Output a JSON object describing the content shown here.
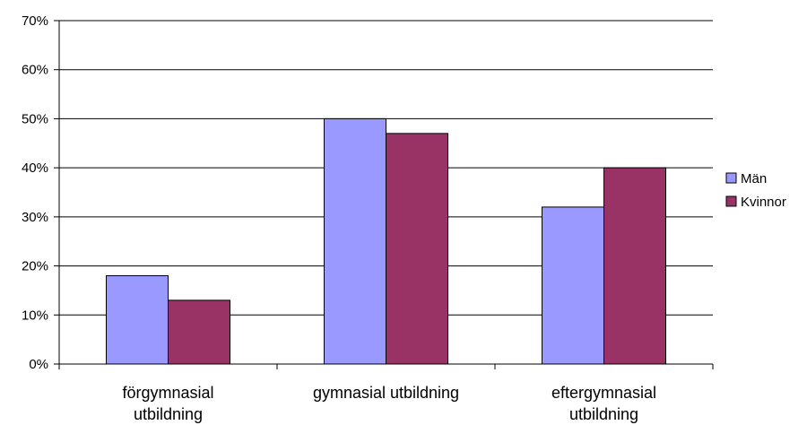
{
  "chart_data": {
    "type": "bar",
    "categories": [
      [
        "förgymnasial",
        "utbildning"
      ],
      [
        "gymnasial utbildning"
      ],
      [
        "eftergymnasial",
        "utbildning"
      ]
    ],
    "series": [
      {
        "name": "Män",
        "values": [
          0.18,
          0.5,
          0.32
        ],
        "color": "#9999ff"
      },
      {
        "name": "Kvinnor",
        "values": [
          0.13,
          0.47,
          0.4
        ],
        "color": "#993366"
      }
    ],
    "yticks": [
      "0%",
      "10%",
      "20%",
      "30%",
      "40%",
      "50%",
      "60%",
      "70%"
    ],
    "ylim": [
      0,
      0.7
    ],
    "grid": true,
    "legend": "right"
  }
}
